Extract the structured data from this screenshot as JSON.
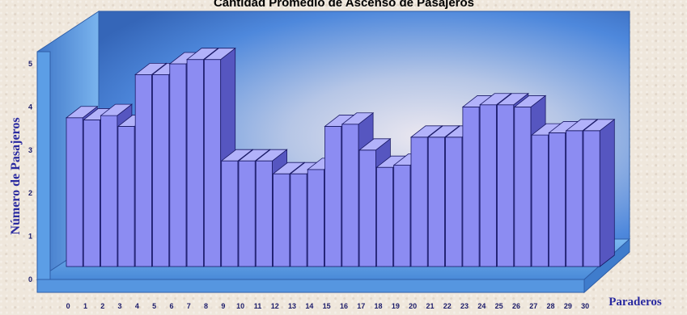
{
  "chart_data": {
    "type": "bar",
    "title": "Cantidad Promedio de Ascenso de Pasajeros",
    "xlabel": "Paraderos",
    "ylabel": "Número de  Pasajeros",
    "ylim": [
      0,
      5
    ],
    "yticks": [
      "0",
      "1",
      "2",
      "3",
      "4",
      "5"
    ],
    "categories": [
      "0",
      "1",
      "2",
      "3",
      "4",
      "5",
      "6",
      "7",
      "8",
      "9",
      "10",
      "11",
      "12",
      "13",
      "14",
      "15",
      "16",
      "17",
      "18",
      "19",
      "20",
      "21",
      "22",
      "23",
      "24",
      "25",
      "26",
      "27",
      "28",
      "29",
      "30"
    ],
    "values": [
      3.45,
      3.4,
      3.5,
      3.25,
      4.45,
      4.45,
      4.7,
      4.8,
      4.8,
      2.45,
      2.45,
      2.45,
      2.15,
      2.15,
      2.25,
      3.25,
      3.3,
      2.7,
      2.3,
      2.35,
      3.0,
      3.0,
      3.0,
      3.7,
      3.75,
      3.75,
      3.7,
      3.05,
      3.1,
      3.15,
      3.15
    ],
    "colors": {
      "bar_front": "#8c8cf2",
      "bar_side": "#5656c0",
      "bar_top": "#b2b2fa",
      "bar_edge": "#1a1a66",
      "floor": "#5b9fe6",
      "left_wall": "#6aaae8",
      "back_wall_edge": "#4f86d0"
    }
  }
}
